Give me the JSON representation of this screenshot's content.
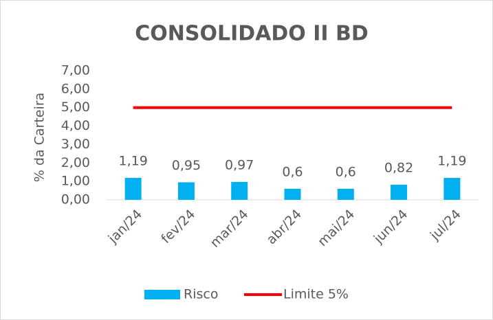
{
  "chart_data": {
    "type": "bar",
    "title": "CONSOLIDADO II BD",
    "y_label": "% da Carteira",
    "categories": [
      "jan/24",
      "fev/24",
      "mar/24",
      "abr/24",
      "mai/24",
      "jun/24",
      "jul/24"
    ],
    "series": [
      {
        "name": "Risco",
        "type": "bar",
        "color": "#00b0f0",
        "values": [
          1.19,
          0.95,
          0.97,
          0.6,
          0.6,
          0.82,
          1.19
        ],
        "value_labels": [
          "1,19",
          "0,95",
          "0,97",
          "0,6",
          "0,6",
          "0,82",
          "1,19"
        ]
      },
      {
        "name": "Limite 5%",
        "type": "line",
        "color": "#ff0000",
        "values": [
          5,
          5,
          5,
          5,
          5,
          5,
          5
        ]
      }
    ],
    "ylim": [
      0,
      7
    ],
    "yticks": [
      {
        "value": 0,
        "label": "0,00"
      },
      {
        "value": 1,
        "label": "1,00"
      },
      {
        "value": 2,
        "label": "2,00"
      },
      {
        "value": 3,
        "label": "3,00"
      },
      {
        "value": 4,
        "label": "4,00"
      },
      {
        "value": 5,
        "label": "5,00"
      },
      {
        "value": 6,
        "label": "6,00"
      },
      {
        "value": 7,
        "label": "7,00"
      }
    ],
    "grid": false,
    "legend": "bottom"
  }
}
